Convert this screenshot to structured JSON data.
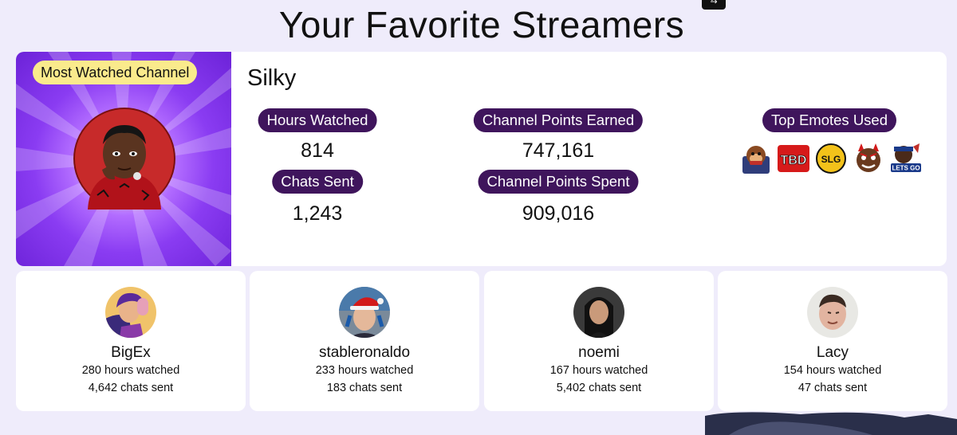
{
  "page": {
    "title": "Your Favorite Streamers"
  },
  "hero": {
    "badge": "Most Watched Channel",
    "streamer": "Silky",
    "stats": {
      "hours_label": "Hours Watched",
      "hours_value": "814",
      "chats_label": "Chats Sent",
      "chats_value": "1,243",
      "points_earned_label": "Channel Points Earned",
      "points_earned_value": "747,161",
      "points_spent_label": "Channel Points Spent",
      "points_spent_value": "909,016",
      "emotes_label": "Top Emotes Used"
    },
    "emotes": [
      {
        "name": "monkey-emote",
        "text": ""
      },
      {
        "name": "tbd-emote",
        "text": "TBD"
      },
      {
        "name": "slg-emote",
        "text": "SLG"
      },
      {
        "name": "devil-emote",
        "text": ""
      },
      {
        "name": "lets-go-emote",
        "text": "LETS GO"
      }
    ]
  },
  "streamers": [
    {
      "name": "BigEx",
      "hours": "280 hours watched",
      "chats": "4,642 chats sent"
    },
    {
      "name": "stableronaldo",
      "hours": "233 hours watched",
      "chats": "183 chats sent"
    },
    {
      "name": "noemi",
      "hours": "167 hours watched",
      "chats": "5,402 chats sent"
    },
    {
      "name": "Lacy",
      "hours": "154 hours watched",
      "chats": "47 chats sent"
    }
  ],
  "colors": {
    "background": "#efecfb",
    "pill": "#3f155c",
    "badge": "#faea8c",
    "hero_art": "#8a3cf2"
  }
}
